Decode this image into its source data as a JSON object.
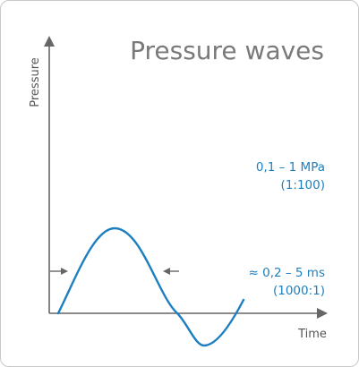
{
  "diagram": {
    "title": "Pressure waves",
    "y_axis_label": "Pressure",
    "x_axis_label": "Time",
    "amplitude_range": "0,1 – 1 MPa",
    "amplitude_ratio": "(1:100)",
    "duration_range": "≈ 0,2 – 5 ms",
    "duration_ratio": "(1000:1)",
    "colors": {
      "wave": "#1d7fc0",
      "axes": "#666666",
      "title": "#7a7a7a",
      "annotation": "#1d7fc0"
    }
  }
}
